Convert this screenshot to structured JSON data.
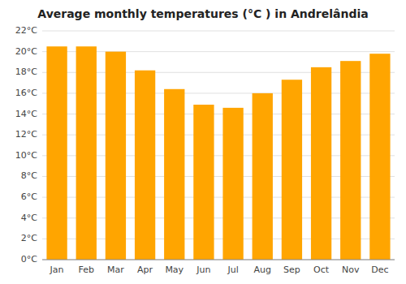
{
  "chart_data": {
    "type": "bar",
    "title": "Average monthly temperatures (°C ) in Andrelândia",
    "categories": [
      "Jan",
      "Feb",
      "Mar",
      "Apr",
      "May",
      "Jun",
      "Jul",
      "Aug",
      "Sep",
      "Oct",
      "Nov",
      "Dec"
    ],
    "values": [
      20.5,
      20.5,
      20.0,
      18.2,
      16.4,
      14.9,
      14.6,
      16.0,
      17.3,
      18.5,
      19.1,
      19.8
    ],
    "color": "#FFA500",
    "ylim": [
      0,
      22
    ],
    "yticks": [
      {
        "value": 0,
        "label": "0°C"
      },
      {
        "value": 2,
        "label": "2°C"
      },
      {
        "value": 4,
        "label": "4°C"
      },
      {
        "value": 6,
        "label": "6°C"
      },
      {
        "value": 8,
        "label": "8°C"
      },
      {
        "value": 10,
        "label": "10°C"
      },
      {
        "value": 12,
        "label": "12°C"
      },
      {
        "value": 14,
        "label": "14°C"
      },
      {
        "value": 16,
        "label": "16°C"
      },
      {
        "value": 18,
        "label": "18°C"
      },
      {
        "value": 20,
        "label": "20°C"
      },
      {
        "value": 22,
        "label": "22°C"
      }
    ],
    "grid": true
  }
}
